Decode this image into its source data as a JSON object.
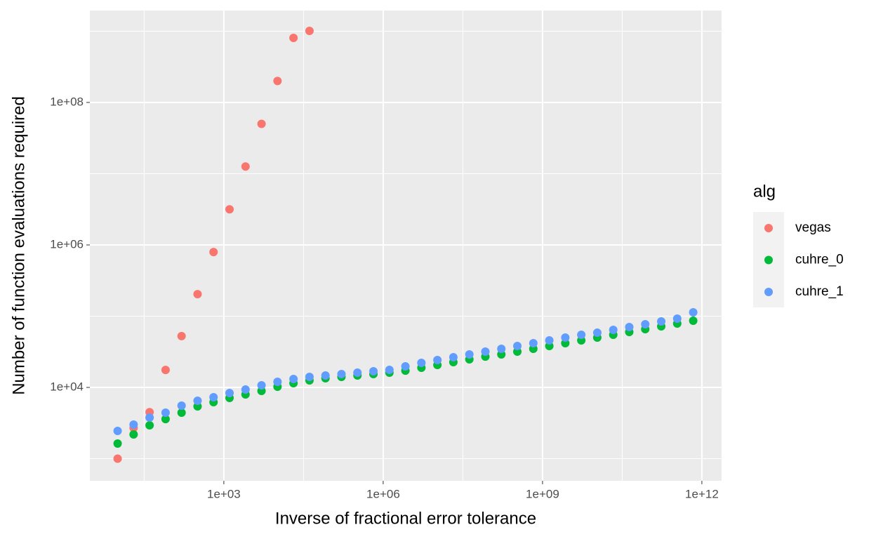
{
  "chart_data": {
    "type": "scatter",
    "xlabel": "Inverse of fractional error tolerance",
    "ylabel": "Number of function evaluations required",
    "legend_title": "alg",
    "log_x": true,
    "log_y": true,
    "grid": true,
    "legend_position": "right",
    "xlim": [
      3,
      2350000000000
    ],
    "ylim": [
      490,
      1950000000
    ],
    "xticks": [
      {
        "value": 1000,
        "label": "1e+03"
      },
      {
        "value": 1000000,
        "label": "1e+06"
      },
      {
        "value": 1000000000,
        "label": "1e+09"
      },
      {
        "value": 1000000000000,
        "label": "1e+12"
      }
    ],
    "yticks": [
      {
        "value": 10000,
        "label": "1e+04"
      },
      {
        "value": 1000000,
        "label": "1e+06"
      },
      {
        "value": 100000000,
        "label": "1e+08"
      }
    ],
    "xminorticks": [
      31.6,
      31623,
      31623000,
      31623000000
    ],
    "yminorticks": [
      1000,
      100000,
      10000000,
      1000000000
    ],
    "series": [
      {
        "name": "vegas",
        "color": "#F8766D",
        "x": [
          10,
          20,
          40,
          80,
          160,
          320,
          640,
          1280,
          2560,
          5120,
          10240,
          20480,
          40960
        ],
        "values": [
          1000,
          2700,
          4500,
          17600,
          52500,
          204000,
          795000,
          3160000,
          12600000,
          50000000,
          200000000,
          805000000,
          1010000000
        ]
      },
      {
        "name": "cuhre_0",
        "color": "#00BA38",
        "x": [
          10,
          20,
          40,
          80,
          160,
          320,
          640,
          1280,
          2560,
          5120,
          10240,
          20480,
          40960,
          81920,
          163840,
          327680,
          655360,
          1310720,
          2621440,
          5242880,
          10485760,
          20971520,
          41943040,
          83886080,
          167772160,
          335544320,
          671088640,
          1342177280,
          2684354560,
          5368709120,
          10737418240,
          21474836480,
          42949672960,
          85899345920,
          171798691840,
          343597383680,
          687194767360
        ],
        "values": [
          1630,
          2190,
          2940,
          3600,
          4420,
          5420,
          6210,
          7120,
          7970,
          8930,
          10230,
          11460,
          12550,
          13430,
          14060,
          14700,
          15380,
          16110,
          17220,
          18880,
          20650,
          22630,
          24770,
          27100,
          29040,
          31780,
          34830,
          38110,
          41780,
          45710,
          50100,
          54830,
          59980,
          65770,
          71940,
          78890,
          86300
        ]
      },
      {
        "name": "cuhre_1",
        "color": "#619CFF",
        "x": [
          10,
          20,
          40,
          80,
          160,
          320,
          640,
          1280,
          2560,
          5120,
          10240,
          20480,
          40960,
          81920,
          163840,
          327680,
          655360,
          1310720,
          2621440,
          5242880,
          10485760,
          20971520,
          41943040,
          83886080,
          167772160,
          335544320,
          671088640,
          1342177280,
          2684354560,
          5368709120,
          10737418240,
          21474836480,
          42949672960,
          85899345920,
          171798691840,
          343597383680,
          687194767360
        ],
        "values": [
          2450,
          3010,
          3770,
          4420,
          5550,
          6500,
          7280,
          8340,
          9340,
          10710,
          11990,
          13130,
          14060,
          14700,
          15380,
          16110,
          16850,
          17630,
          19760,
          22120,
          24210,
          26540,
          29040,
          31780,
          34830,
          38110,
          41780,
          45710,
          50100,
          54830,
          58620,
          64270,
          70310,
          77090,
          84330,
          92470,
          113300
        ]
      }
    ]
  }
}
